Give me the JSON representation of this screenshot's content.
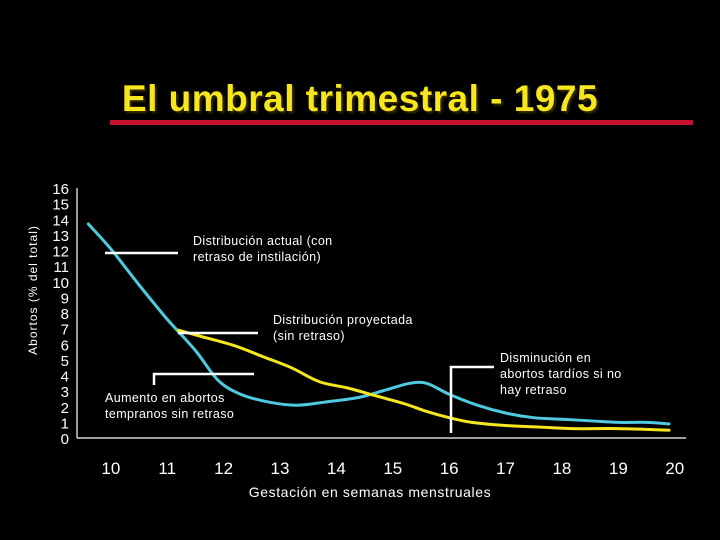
{
  "title": "El umbral trimestral - 1975",
  "colors": {
    "background": "#000000",
    "title": "#F5E61E",
    "title_rule": "#C8102E",
    "actual_series": "#4FC9E0",
    "projected_series": "#F5E61E",
    "axis_and_text": "#FFFFFF"
  },
  "chart_data": {
    "type": "line",
    "title": "El umbral trimestral - 1975",
    "xlabel": "Gestación en semanas menstruales",
    "ylabel": "Abortos (% del total)",
    "xlim": [
      9.4,
      20.2
    ],
    "ylim": [
      0,
      16
    ],
    "x_ticks": [
      10,
      11,
      12,
      13,
      14,
      15,
      16,
      17,
      18,
      19,
      20
    ],
    "y_ticks": [
      0,
      1,
      2,
      3,
      4,
      5,
      6,
      7,
      8,
      9,
      10,
      11,
      12,
      13,
      14,
      15,
      16
    ],
    "grid": false,
    "legend": "none",
    "series": [
      {
        "key": "actual",
        "points": [
          [
            9.6,
            13.7
          ],
          [
            10.0,
            12.1
          ],
          [
            10.5,
            9.8
          ],
          [
            11.0,
            7.6
          ],
          [
            11.5,
            5.6
          ],
          [
            11.9,
            3.7
          ],
          [
            12.3,
            2.8
          ],
          [
            12.8,
            2.3
          ],
          [
            13.3,
            2.1
          ],
          [
            13.8,
            2.3
          ],
          [
            14.4,
            2.6
          ],
          [
            14.9,
            3.1
          ],
          [
            15.3,
            3.5
          ],
          [
            15.6,
            3.5
          ],
          [
            16.0,
            2.8
          ],
          [
            16.5,
            2.1
          ],
          [
            17.0,
            1.6
          ],
          [
            17.5,
            1.3
          ],
          [
            18.0,
            1.2
          ],
          [
            18.5,
            1.1
          ],
          [
            19.0,
            1.0
          ],
          [
            19.5,
            1.0
          ],
          [
            19.9,
            0.9
          ]
        ]
      },
      {
        "key": "projected",
        "points": [
          [
            11.2,
            6.9
          ],
          [
            11.6,
            6.5
          ],
          [
            12.2,
            5.9
          ],
          [
            12.7,
            5.2
          ],
          [
            13.2,
            4.5
          ],
          [
            13.7,
            3.6
          ],
          [
            14.2,
            3.2
          ],
          [
            14.7,
            2.7
          ],
          [
            15.2,
            2.2
          ],
          [
            15.6,
            1.7
          ],
          [
            16.0,
            1.3
          ],
          [
            16.4,
            1.0
          ],
          [
            17.0,
            0.8
          ],
          [
            17.6,
            0.7
          ],
          [
            18.2,
            0.6
          ],
          [
            19.0,
            0.6
          ],
          [
            19.9,
            0.5
          ]
        ]
      }
    ]
  },
  "annotations": {
    "actual": "Distribución actual (con\nretraso de instilación)",
    "projected": "Distribución proyectada\n(sin retraso)",
    "late_decrease": "Disminución en\nabortos tardíos si no\nhay retraso",
    "early_increase": "Aumento en abortos\ntempranos sin retraso"
  }
}
